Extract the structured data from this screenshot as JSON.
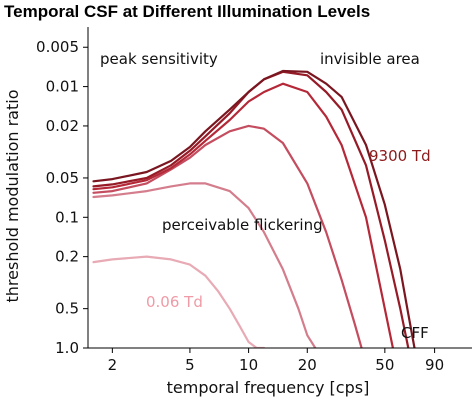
{
  "chart_data": {
    "type": "line",
    "title": "Temporal CSF at Different Illumination Levels",
    "xlabel": "temporal frequency [cps]",
    "ylabel": "threshold modulation ratio",
    "x_scale": "log",
    "y_scale": "log",
    "y_inverted": true,
    "xlim": [
      1.5,
      140
    ],
    "ylim": [
      1.0,
      0.0035
    ],
    "x_ticks": [
      "2",
      "5",
      "10",
      "20",
      "50",
      "90"
    ],
    "y_ticks": [
      "0.005",
      "0.01",
      "0.02",
      "0.05",
      "0.1",
      "0.2",
      "0.5",
      "1.0"
    ],
    "grid": false,
    "legend": "none",
    "annotations": [
      {
        "text": "peak sensitivity",
        "color": "#111111"
      },
      {
        "text": "invisible area",
        "color": "#111111"
      },
      {
        "text": "9300 Td",
        "color": "#8b1a1a"
      },
      {
        "text": "perceivable flickering",
        "color": "#111111"
      },
      {
        "text": "0.06 Td",
        "color": "#ef9aa6"
      },
      {
        "text": "CFF",
        "color": "#111111"
      }
    ],
    "series": [
      {
        "color": "#e8aab4",
        "x": [
          1.6,
          2,
          3,
          4,
          5,
          6,
          7,
          8,
          9,
          10,
          11,
          12
        ],
        "y": [
          0.22,
          0.21,
          0.2,
          0.21,
          0.23,
          0.28,
          0.37,
          0.5,
          0.68,
          0.9,
          1.0,
          1.0
        ]
      },
      {
        "color": "#d47d8c",
        "x": [
          1.6,
          2,
          3,
          4,
          5,
          6,
          8,
          10,
          12,
          15,
          18,
          20,
          22
        ],
        "y": [
          0.07,
          0.068,
          0.063,
          0.058,
          0.055,
          0.055,
          0.063,
          0.085,
          0.13,
          0.25,
          0.5,
          0.8,
          1.0
        ]
      },
      {
        "color": "#c44d5f",
        "x": [
          1.6,
          2,
          3,
          4,
          5,
          6,
          8,
          10,
          12,
          15,
          20,
          25,
          30,
          35,
          38
        ],
        "y": [
          0.065,
          0.063,
          0.055,
          0.043,
          0.035,
          0.028,
          0.022,
          0.02,
          0.021,
          0.027,
          0.055,
          0.13,
          0.3,
          0.65,
          1.0
        ]
      },
      {
        "color": "#b52838",
        "x": [
          1.6,
          2,
          3,
          4,
          5,
          6,
          8,
          10,
          12,
          15,
          20,
          25,
          30,
          40,
          50,
          55
        ],
        "y": [
          0.061,
          0.059,
          0.052,
          0.042,
          0.033,
          0.026,
          0.018,
          0.013,
          0.011,
          0.0095,
          0.011,
          0.017,
          0.028,
          0.1,
          0.5,
          1.0
        ]
      },
      {
        "color": "#961b27",
        "x": [
          1.6,
          2,
          3,
          4,
          5,
          6,
          8,
          10,
          12,
          15,
          20,
          25,
          30,
          40,
          50,
          60,
          66
        ],
        "y": [
          0.058,
          0.056,
          0.05,
          0.04,
          0.031,
          0.024,
          0.016,
          0.011,
          0.0088,
          0.0077,
          0.0082,
          0.011,
          0.015,
          0.04,
          0.15,
          0.5,
          1.0
        ]
      },
      {
        "color": "#7a1620",
        "x": [
          1.6,
          2,
          3,
          4,
          5,
          6,
          8,
          10,
          12,
          15,
          20,
          25,
          30,
          40,
          50,
          60,
          66,
          71
        ],
        "y": [
          0.053,
          0.051,
          0.045,
          0.037,
          0.029,
          0.022,
          0.015,
          0.011,
          0.0088,
          0.0076,
          0.0077,
          0.0095,
          0.012,
          0.028,
          0.08,
          0.25,
          0.55,
          1.0
        ]
      }
    ]
  }
}
